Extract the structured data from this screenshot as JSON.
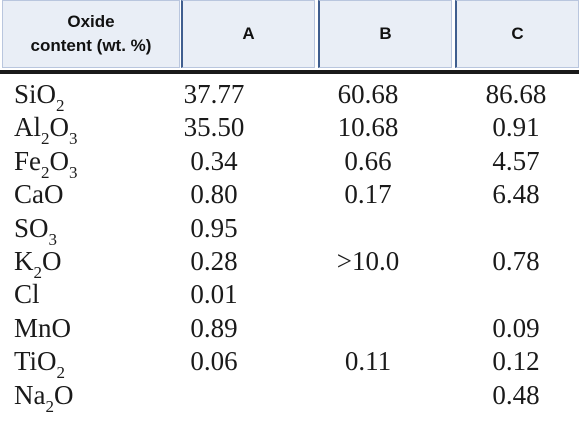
{
  "header": {
    "oxide_line1": "Oxide",
    "oxide_line2": "content (wt. %)",
    "col_a": "A",
    "col_b": "B",
    "col_c": "C"
  },
  "rows": [
    {
      "oxide_main": "SiO",
      "oxide_sub": "2",
      "oxide_tail": "",
      "a": "37.77",
      "b": "60.68",
      "c": "86.68"
    },
    {
      "oxide_main": "Al",
      "oxide_sub": "2",
      "oxide_tail": "O",
      "oxide_sub2": "3",
      "a": "35.50",
      "b": "10.68",
      "c": "0.91"
    },
    {
      "oxide_main": "Fe",
      "oxide_sub": "2",
      "oxide_tail": "O",
      "oxide_sub2": "3",
      "a": "0.34",
      "b": "0.66",
      "c": "4.57"
    },
    {
      "oxide_main": "CaO",
      "oxide_sub": "",
      "oxide_tail": "",
      "a": "0.80",
      "b": "0.17",
      "c": "6.48"
    },
    {
      "oxide_main": "SO",
      "oxide_sub": "3",
      "oxide_tail": "",
      "a": "0.95",
      "b": "",
      "c": ""
    },
    {
      "oxide_main": "K",
      "oxide_sub": "2",
      "oxide_tail": "O",
      "a": "0.28",
      "b": ">10.0",
      "c": "0.78"
    },
    {
      "oxide_main": "Cl",
      "oxide_sub": "",
      "oxide_tail": "",
      "a": "0.01",
      "b": "",
      "c": ""
    },
    {
      "oxide_main": "MnO",
      "oxide_sub": "",
      "oxide_tail": "",
      "a": "0.89",
      "b": "",
      "c": "0.09"
    },
    {
      "oxide_main": "TiO",
      "oxide_sub": "2",
      "oxide_tail": "",
      "a": "0.06",
      "b": "0.11",
      "c": "0.12"
    },
    {
      "oxide_main": "Na",
      "oxide_sub": "2",
      "oxide_tail": "O",
      "a": "",
      "b": "",
      "c": "0.48"
    }
  ]
}
